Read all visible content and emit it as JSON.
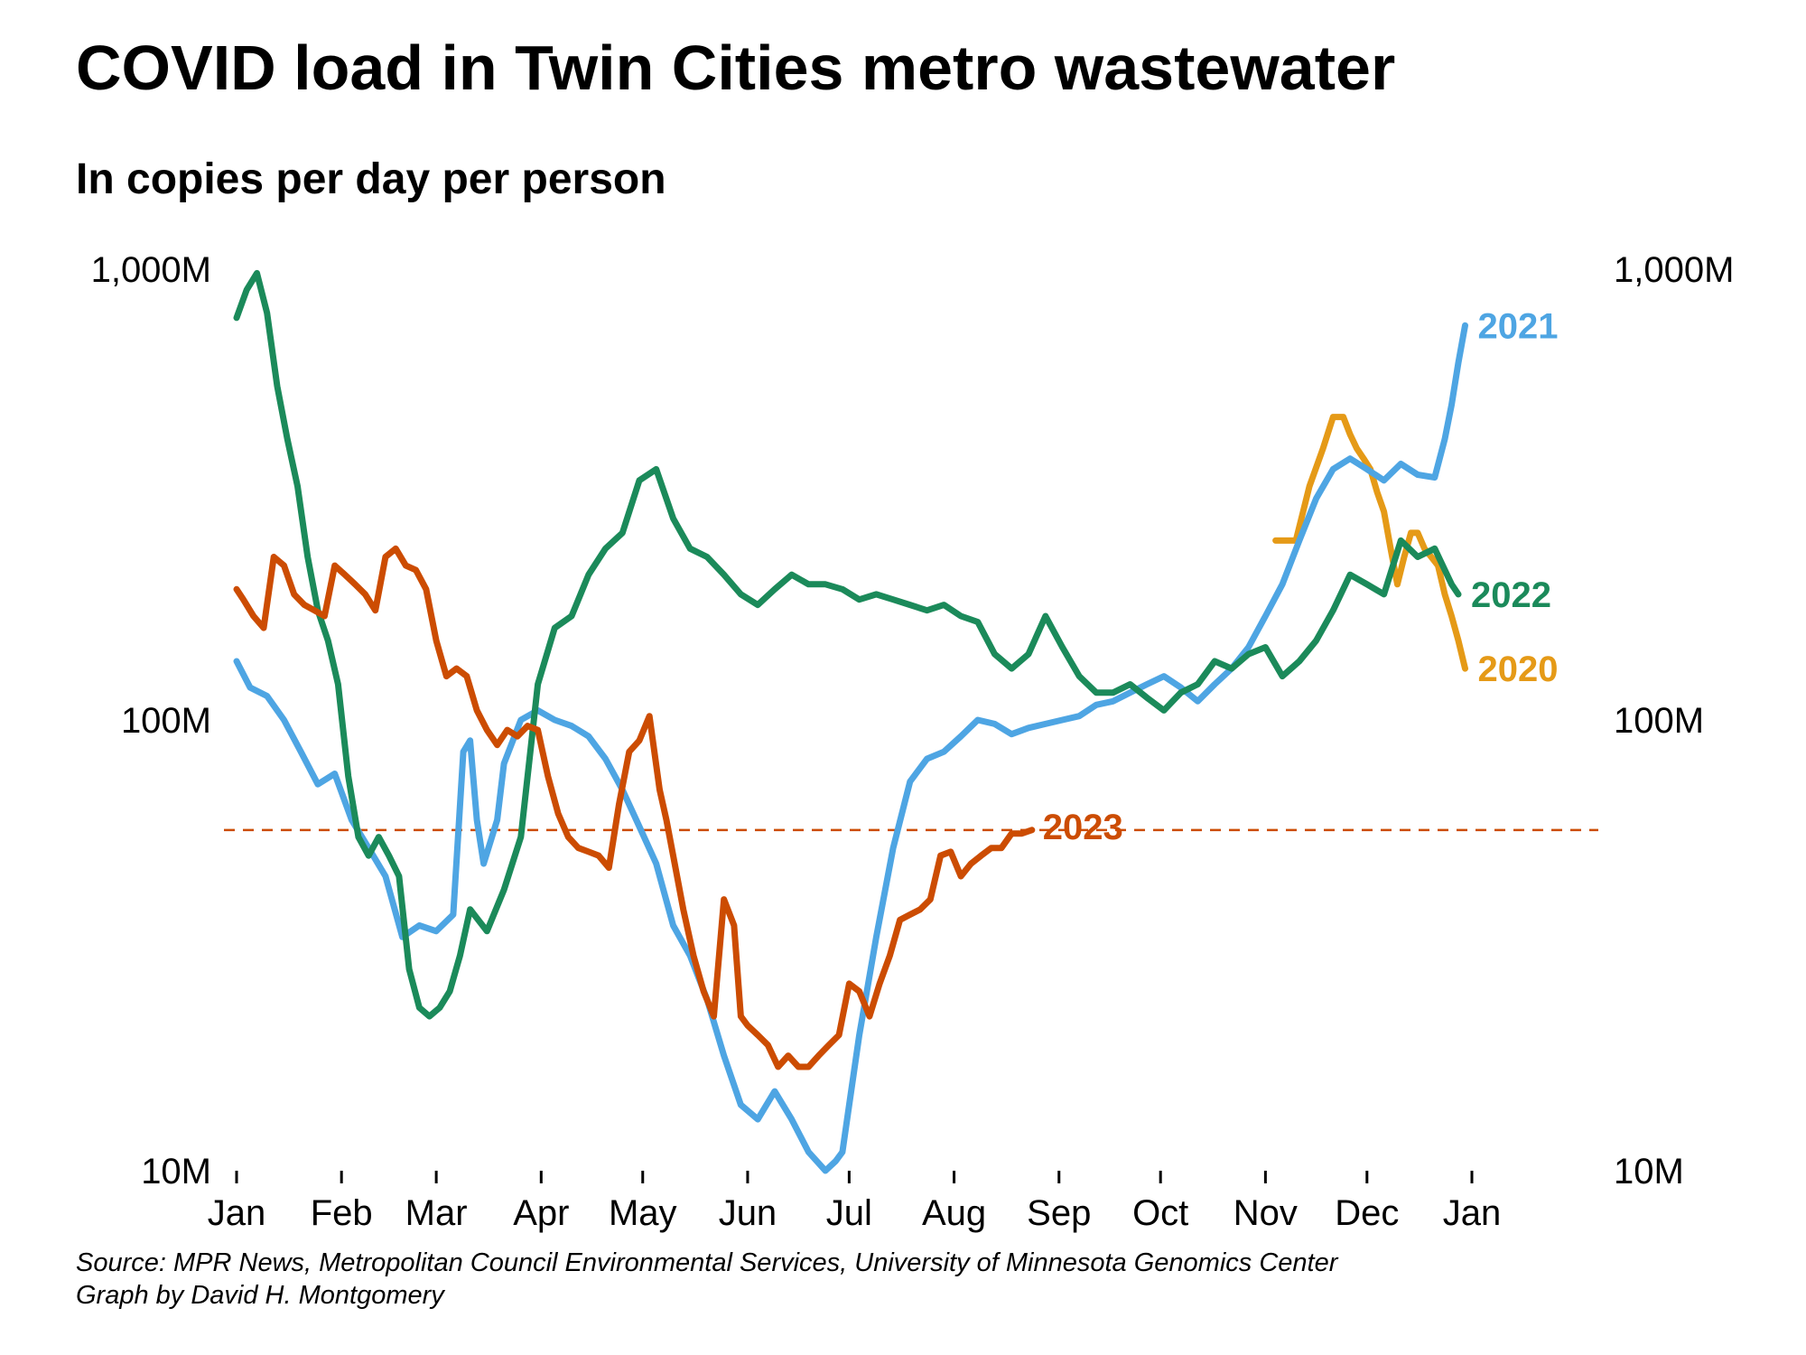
{
  "chart_data": {
    "type": "line",
    "title": "COVID load in Twin Cities metro wastewater",
    "subtitle": "In copies per day per person",
    "yscale": "log",
    "ylim": [
      10000000,
      1000000000
    ],
    "xlim": [
      1,
      366
    ],
    "grid": false,
    "y_ticks": [
      {
        "value": 1000000000,
        "label": "1,000M"
      },
      {
        "value": 100000000,
        "label": "100M"
      },
      {
        "value": 10000000,
        "label": "10M"
      }
    ],
    "x_ticks": [
      {
        "value": 1,
        "label": "Jan"
      },
      {
        "value": 32,
        "label": "Feb"
      },
      {
        "value": 60,
        "label": "Mar"
      },
      {
        "value": 91,
        "label": "Apr"
      },
      {
        "value": 121,
        "label": "May"
      },
      {
        "value": 152,
        "label": "Jun"
      },
      {
        "value": 182,
        "label": "Jul"
      },
      {
        "value": 213,
        "label": "Aug"
      },
      {
        "value": 244,
        "label": "Sep"
      },
      {
        "value": 274,
        "label": "Oct"
      },
      {
        "value": 305,
        "label": "Nov"
      },
      {
        "value": 335,
        "label": "Dec"
      },
      {
        "value": 366,
        "label": "Jan"
      }
    ],
    "reference_line": {
      "value": 57000000,
      "color": "#cc4c02",
      "dashed": true
    },
    "series": [
      {
        "name": "2020",
        "color": "#e59a17",
        "x": [
          308,
          314,
          318,
          322,
          325,
          328,
          330,
          332,
          334,
          336,
          338,
          340,
          342,
          344,
          346,
          348,
          350,
          352,
          354,
          356,
          358,
          360,
          362,
          364
        ],
        "y": [
          250000000,
          250000000,
          330000000,
          400000000,
          470000000,
          470000000,
          430000000,
          400000000,
          380000000,
          360000000,
          320000000,
          290000000,
          240000000,
          200000000,
          230000000,
          260000000,
          260000000,
          240000000,
          230000000,
          220000000,
          190000000,
          170000000,
          150000000,
          130000000
        ]
      },
      {
        "name": "2021",
        "color": "#4ea5e3",
        "x": [
          1,
          5,
          10,
          15,
          20,
          25,
          30,
          35,
          40,
          45,
          50,
          55,
          60,
          65,
          68,
          70,
          72,
          74,
          78,
          80,
          85,
          90,
          95,
          100,
          105,
          110,
          115,
          120,
          125,
          130,
          135,
          140,
          145,
          150,
          155,
          160,
          165,
          170,
          175,
          178,
          180,
          182,
          185,
          190,
          195,
          200,
          205,
          210,
          215,
          220,
          225,
          230,
          235,
          240,
          245,
          250,
          255,
          260,
          265,
          270,
          275,
          280,
          285,
          290,
          295,
          300,
          305,
          310,
          315,
          320,
          325,
          330,
          335,
          340,
          345,
          350,
          355,
          358,
          360,
          362,
          364
        ],
        "y": [
          135000000,
          118000000,
          113000000,
          100000000,
          85000000,
          72000000,
          76000000,
          60000000,
          52000000,
          45000000,
          33000000,
          35000000,
          34000000,
          37000000,
          85000000,
          90000000,
          60000000,
          48000000,
          60000000,
          80000000,
          100000000,
          105000000,
          100000000,
          97000000,
          92000000,
          82000000,
          70000000,
          58000000,
          48000000,
          35000000,
          30000000,
          24000000,
          18000000,
          14000000,
          13000000,
          15000000,
          13000000,
          11000000,
          10000000,
          10500000,
          11000000,
          14000000,
          20000000,
          33000000,
          52000000,
          73000000,
          82000000,
          85000000,
          92000000,
          100000000,
          98000000,
          93000000,
          96000000,
          98000000,
          100000000,
          102000000,
          108000000,
          110000000,
          115000000,
          120000000,
          125000000,
          118000000,
          110000000,
          120000000,
          130000000,
          145000000,
          170000000,
          200000000,
          250000000,
          310000000,
          360000000,
          380000000,
          360000000,
          340000000,
          370000000,
          350000000,
          345000000,
          420000000,
          500000000,
          620000000,
          750000000
        ]
      },
      {
        "name": "2022",
        "color": "#1b8a5a",
        "x": [
          1,
          4,
          7,
          10,
          13,
          16,
          19,
          22,
          25,
          28,
          31,
          34,
          37,
          40,
          43,
          46,
          49,
          52,
          55,
          58,
          61,
          64,
          67,
          70,
          75,
          80,
          85,
          90,
          95,
          100,
          105,
          110,
          115,
          120,
          125,
          130,
          135,
          140,
          145,
          150,
          155,
          160,
          165,
          170,
          175,
          180,
          185,
          190,
          195,
          200,
          205,
          210,
          215,
          220,
          225,
          230,
          235,
          240,
          245,
          250,
          255,
          260,
          265,
          270,
          275,
          280,
          285,
          290,
          295,
          300,
          305,
          310,
          315,
          320,
          325,
          330,
          335,
          340,
          345,
          350,
          355,
          360,
          362
        ],
        "y": [
          780000000,
          900000000,
          980000000,
          800000000,
          550000000,
          420000000,
          330000000,
          230000000,
          175000000,
          150000000,
          120000000,
          75000000,
          55000000,
          50000000,
          55000000,
          50000000,
          45000000,
          28000000,
          23000000,
          22000000,
          23000000,
          25000000,
          30000000,
          38000000,
          34000000,
          42000000,
          55000000,
          120000000,
          160000000,
          170000000,
          210000000,
          240000000,
          260000000,
          340000000,
          360000000,
          280000000,
          240000000,
          230000000,
          210000000,
          190000000,
          180000000,
          195000000,
          210000000,
          200000000,
          200000000,
          195000000,
          185000000,
          190000000,
          185000000,
          180000000,
          175000000,
          180000000,
          170000000,
          165000000,
          140000000,
          130000000,
          140000000,
          170000000,
          145000000,
          125000000,
          115000000,
          115000000,
          120000000,
          112000000,
          105000000,
          115000000,
          120000000,
          135000000,
          130000000,
          140000000,
          145000000,
          125000000,
          135000000,
          150000000,
          175000000,
          210000000,
          200000000,
          190000000,
          250000000,
          230000000,
          240000000,
          200000000,
          190000000
        ]
      },
      {
        "name": "2023",
        "color": "#cc4c02",
        "x": [
          1,
          3,
          6,
          9,
          12,
          15,
          18,
          21,
          24,
          27,
          30,
          33,
          36,
          39,
          42,
          45,
          48,
          51,
          54,
          57,
          60,
          63,
          66,
          69,
          72,
          75,
          78,
          81,
          84,
          87,
          90,
          93,
          96,
          99,
          102,
          105,
          108,
          111,
          114,
          117,
          120,
          123,
          126,
          128,
          130,
          133,
          136,
          139,
          142,
          145,
          148,
          150,
          152,
          155,
          158,
          161,
          164,
          167,
          170,
          173,
          176,
          179,
          182,
          185,
          188,
          191,
          194,
          197,
          200,
          203,
          206,
          209,
          212,
          215,
          218,
          221,
          224,
          227,
          230,
          233,
          236
        ],
        "y": [
          195000000,
          185000000,
          170000000,
          160000000,
          230000000,
          220000000,
          190000000,
          180000000,
          175000000,
          170000000,
          220000000,
          210000000,
          200000000,
          190000000,
          175000000,
          230000000,
          240000000,
          220000000,
          215000000,
          195000000,
          150000000,
          125000000,
          130000000,
          125000000,
          105000000,
          95000000,
          88000000,
          95000000,
          92000000,
          97000000,
          95000000,
          75000000,
          62000000,
          55000000,
          52000000,
          51000000,
          50000000,
          47000000,
          65000000,
          85000000,
          90000000,
          102000000,
          70000000,
          60000000,
          50000000,
          38000000,
          30000000,
          25000000,
          22000000,
          40000000,
          35000000,
          22000000,
          21000000,
          20000000,
          19000000,
          17000000,
          18000000,
          17000000,
          17000000,
          18000000,
          19000000,
          20000000,
          26000000,
          25000000,
          22000000,
          26000000,
          30000000,
          36000000,
          37000000,
          38000000,
          40000000,
          50000000,
          51000000,
          45000000,
          48000000,
          50000000,
          52000000,
          52000000,
          56000000,
          56000000,
          57000000
        ]
      }
    ]
  }
}
